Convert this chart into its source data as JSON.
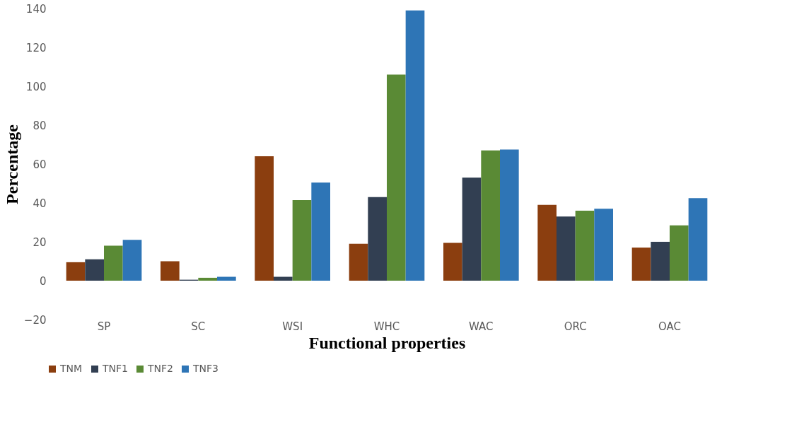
{
  "chart_data": {
    "type": "bar",
    "xlabel": "Functional properties",
    "ylabel": "Percentage",
    "categories": [
      "SP",
      "SC",
      "WSI",
      "WHC",
      "WAC",
      "ORC",
      "OAC"
    ],
    "series": [
      {
        "name": "TNM",
        "color": "#8b3e0f",
        "values": [
          9.5,
          10,
          64,
          19,
          19.5,
          39,
          17
        ]
      },
      {
        "name": "TNF1",
        "color": "#323f52",
        "values": [
          11,
          0.5,
          2,
          43,
          53,
          33,
          20
        ]
      },
      {
        "name": "TNF2",
        "color": "#5a8a35",
        "values": [
          18,
          1.5,
          41.5,
          106,
          67,
          36,
          28.5
        ]
      },
      {
        "name": "TNF3",
        "color": "#2e75b6",
        "values": [
          21,
          2,
          50.5,
          139,
          67.5,
          37,
          42.5
        ]
      }
    ],
    "ylim": [
      -20,
      140
    ],
    "yticks": [
      -20,
      0,
      20,
      40,
      60,
      80,
      100,
      120,
      140
    ],
    "grid": false,
    "legend": "bottom"
  }
}
